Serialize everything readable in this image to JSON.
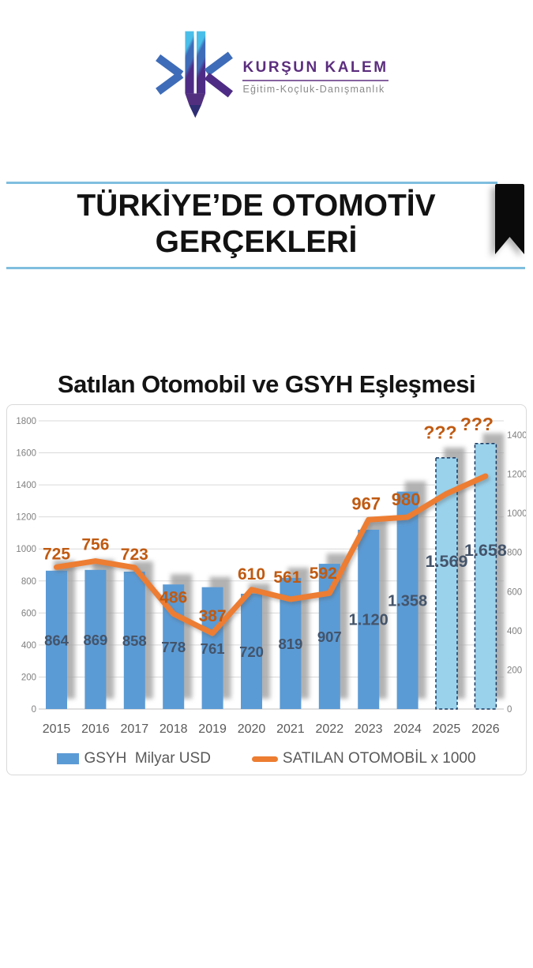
{
  "logo": {
    "brand": "KURŞUN KALEM",
    "tagline": "Eğitim-Koçluk-Danışmanlık"
  },
  "header": {
    "title_line1": "TÜRKİYE’DE OTOMOTİV",
    "title_line2": "GERÇEKLERİ"
  },
  "chart": {
    "title": "Satılan Otomobil ve GSYH Eşleşmesi",
    "legend_bar": "GSYH  Milyar USD",
    "legend_line": "SATILAN OTOMOBİL x 1000"
  },
  "chart_data": {
    "type": "bar",
    "subtype": "combo bar + line, dual axis",
    "title": "Satılan Otomobil ve GSYH Eşleşmesi",
    "categories": [
      "2015",
      "2016",
      "2017",
      "2018",
      "2019",
      "2020",
      "2021",
      "2022",
      "2023",
      "2024",
      "2025",
      "2026"
    ],
    "series": [
      {
        "name": "GSYH Milyar USD",
        "type": "bar",
        "axis": "left",
        "values": [
          864,
          869,
          858,
          778,
          761,
          720,
          819,
          907,
          1120,
          1358,
          1569,
          1658
        ],
        "labels": [
          "864",
          "869",
          "858",
          "778",
          "761",
          "720",
          "819",
          "907",
          "1.120",
          "1.358",
          "1.569",
          "1.658"
        ],
        "forecast": [
          false,
          false,
          false,
          false,
          false,
          false,
          false,
          false,
          false,
          false,
          true,
          true
        ]
      },
      {
        "name": "SATILAN OTOMOBİL x 1000",
        "type": "line",
        "axis": "right",
        "values": [
          725,
          756,
          723,
          486,
          387,
          610,
          561,
          592,
          967,
          980,
          1100,
          1190
        ],
        "labels": [
          "725",
          "756",
          "723",
          "486",
          "387",
          "610",
          "561",
          "592",
          "967",
          "980",
          "???",
          "???"
        ],
        "estimated": [
          false,
          false,
          false,
          false,
          false,
          false,
          false,
          false,
          false,
          false,
          true,
          true
        ]
      }
    ],
    "left_axis": {
      "min": 0,
      "max": 1800,
      "step": 200
    },
    "right_axis": {
      "min": 0,
      "max": 1400,
      "step": 200
    },
    "grid": true,
    "legend_position": "bottom",
    "colors": {
      "bar": "#5B9BD5",
      "bar_forecast": "#9AD2EC",
      "bar_forecast_border": "#17375E",
      "bar_shadow": "#A0A0A0",
      "line": "#ED7D31",
      "line_label": "#C05A11",
      "bar_label": "#44546A",
      "axis_text": "#808080",
      "category_text": "#595959",
      "gridline": "#D9D9D9",
      "axis_line": "#BFBFBF"
    }
  },
  "accent": {
    "rule_blue": "#7FBEDF",
    "bookmark_black": "#0a0a0a",
    "brand_purple": "#5C2E7E"
  }
}
